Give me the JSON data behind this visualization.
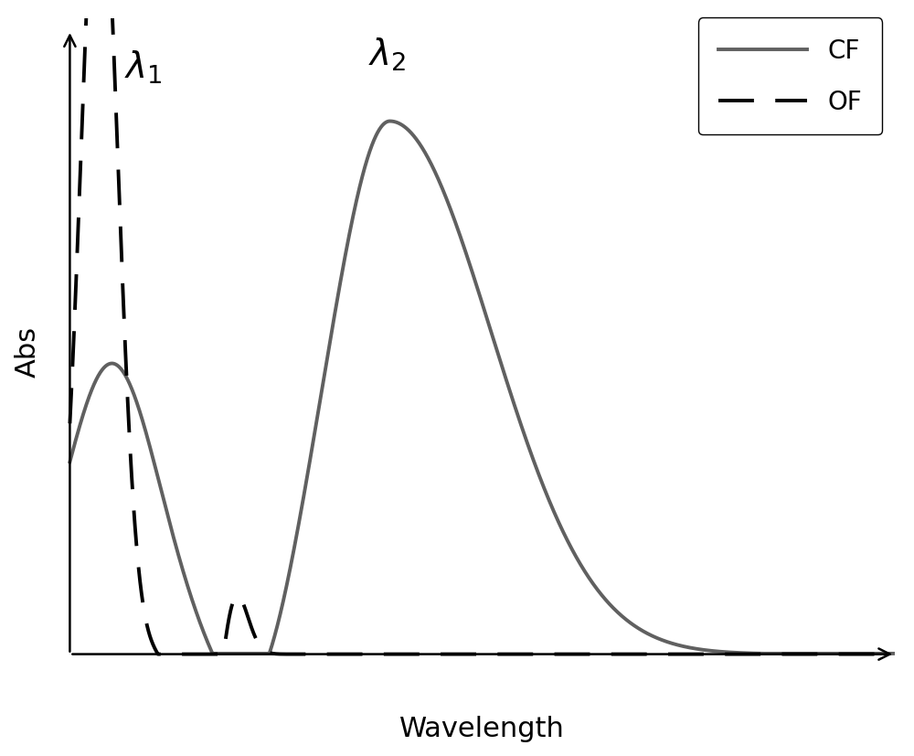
{
  "xlabel": "Wavelength",
  "ylabel": "Abs",
  "lambda1_label": "$\\lambda_1$",
  "lambda2_label": "$\\lambda_2$",
  "legend_cf": "CF",
  "legend_of": "OF",
  "cf_color": "#606060",
  "of_color": "#000000",
  "bg_color": "#ffffff",
  "cf_linewidth": 2.8,
  "of_linewidth": 2.8,
  "xlabel_fontsize": 22,
  "ylabel_fontsize": 22,
  "annotation_fontsize": 28,
  "legend_fontsize": 20,
  "figsize": [
    10.0,
    8.28
  ],
  "dpi": 100
}
